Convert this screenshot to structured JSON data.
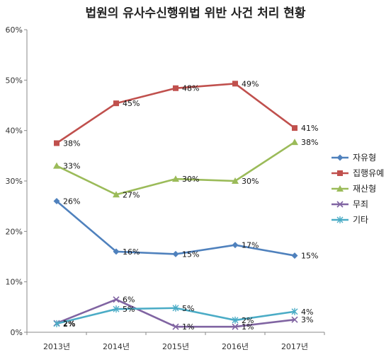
{
  "chart_data": {
    "type": "line",
    "title": "법원의 유사수신행위법 위반 사건 처리 현황",
    "categories": [
      "2013년",
      "2014년",
      "2015년",
      "2016년",
      "2017년"
    ],
    "y_ticks": [
      "0%",
      "10%",
      "20%",
      "30%",
      "40%",
      "50%",
      "60%"
    ],
    "ylim": [
      0,
      60
    ],
    "grid": false,
    "legend_position": "right",
    "series": [
      {
        "name": "자유형",
        "color": "#4f81bd",
        "marker": "diamond",
        "values": [
          26,
          16,
          15.5,
          17.3,
          15.2
        ],
        "labels": [
          "26%",
          "16%",
          "15%",
          "17%",
          "15%"
        ]
      },
      {
        "name": "집행유예",
        "color": "#c0504d",
        "marker": "square",
        "values": [
          37.5,
          45.4,
          48.4,
          49.3,
          40.5
        ],
        "labels": [
          "38%",
          "45%",
          "48%",
          "49%",
          "41%"
        ]
      },
      {
        "name": "재산형",
        "color": "#9bbb59",
        "marker": "triangle",
        "values": [
          33,
          27.3,
          30.4,
          30,
          37.7
        ],
        "labels": [
          "33%",
          "27%",
          "30%",
          "30%",
          "38%"
        ]
      },
      {
        "name": "무죄",
        "color": "#8064a2",
        "marker": "x",
        "values": [
          1.8,
          6.5,
          1.1,
          1.1,
          2.5
        ],
        "labels": [
          "2%",
          "6%",
          "1%",
          "1%",
          "3%"
        ]
      },
      {
        "name": "기타",
        "color": "#4bacc6",
        "marker": "star",
        "values": [
          1.7,
          4.6,
          4.8,
          2.4,
          4.1
        ],
        "labels": [
          "2%",
          "5%",
          "5%",
          "2%",
          "4%"
        ]
      }
    ]
  }
}
